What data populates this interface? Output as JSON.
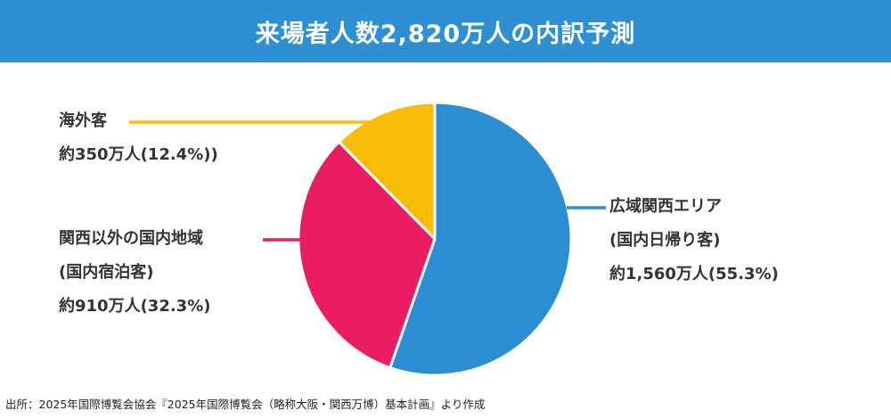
{
  "title": "来場者人数2,820万人の内訳予測",
  "source": "出所：2025年国際博覧会協会『2025年国際博覧会（略称大阪・関西万博）基本計画』より作成",
  "colors": {
    "header": "#2f8fd3",
    "domestic_day": "#2b8ed2",
    "domestic_stay": "#e91c64",
    "overseas": "#fbbd0a"
  },
  "chart_data": {
    "type": "pie",
    "total_label": "2,820万人",
    "slices": [
      {
        "key": "domestic_day",
        "label_lines": [
          "広域関西エリア",
          "(国内日帰り客)",
          "約1,560万人(55.3%)"
        ],
        "value": 1560,
        "percent": 55.3
      },
      {
        "key": "domestic_stay",
        "label_lines": [
          "関西以外の国内地域",
          "(国内宿泊客)",
          "約910万人(32.3%)"
        ],
        "value": 910,
        "percent": 32.3
      },
      {
        "key": "overseas",
        "label_lines": [
          "海外客",
          "約350万人(12.4%))"
        ],
        "value": 350,
        "percent": 12.4
      }
    ]
  }
}
